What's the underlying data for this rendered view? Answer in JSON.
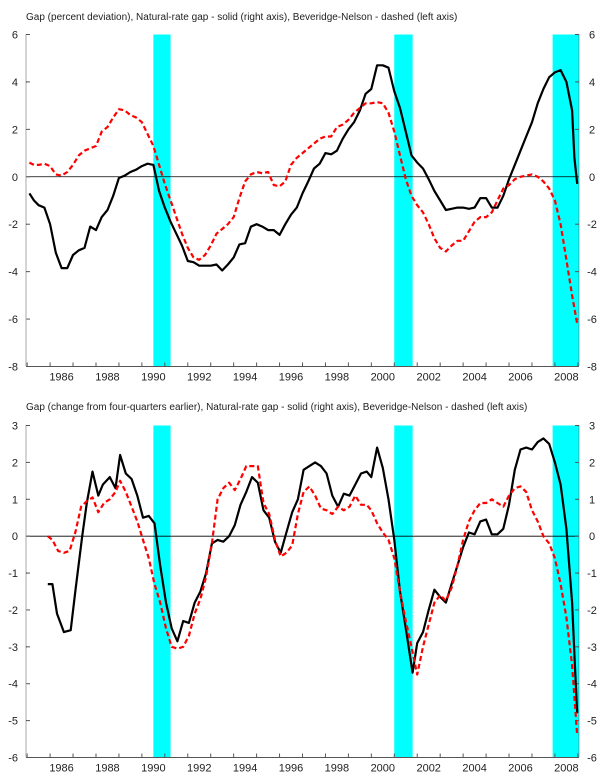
{
  "chart_data": [
    {
      "type": "line",
      "title": "Gap (percent deviation), Natural-rate gap - solid (right axis),  Beveridge-Nelson - dashed (left axis)",
      "xlim": [
        1984.95,
        2009.05
      ],
      "ylim": [
        -8,
        6
      ],
      "y_ticks": [
        6,
        4,
        2,
        0,
        -2,
        -4,
        -6,
        -8
      ],
      "x_tick_labels": [
        "1986",
        "1988",
        "1990",
        "1992",
        "1994",
        "1996",
        "1998",
        "2000",
        "2002",
        "2004",
        "2006",
        "2008"
      ],
      "recessions": [
        [
          1990.5,
          1991.25
        ],
        [
          2001.0,
          2001.8
        ],
        [
          2007.9,
          2009.05
        ]
      ],
      "colors": {
        "solid": "#000000",
        "dashed": "#ff0000",
        "recession": "#00ffff"
      },
      "series": [
        {
          "name": "Natural-rate gap",
          "style": "solid",
          "axis": "right",
          "x": [
            1985.1,
            1985.3,
            1985.5,
            1985.75,
            1986.0,
            1986.25,
            1986.5,
            1986.75,
            1987.0,
            1987.25,
            1987.5,
            1987.75,
            1988.0,
            1988.25,
            1988.5,
            1988.75,
            1989.0,
            1989.25,
            1989.5,
            1989.75,
            1990.0,
            1990.25,
            1990.5,
            1990.75,
            1991.0,
            1991.25,
            1991.5,
            1991.75,
            1992.0,
            1992.25,
            1992.5,
            1992.75,
            1993.0,
            1993.25,
            1993.5,
            1993.75,
            1994.0,
            1994.25,
            1994.5,
            1994.75,
            1995.0,
            1995.25,
            1995.5,
            1995.75,
            1996.0,
            1996.25,
            1996.5,
            1996.75,
            1997.0,
            1997.25,
            1997.5,
            1997.75,
            1998.0,
            1998.25,
            1998.5,
            1998.75,
            1999.0,
            1999.25,
            1999.5,
            1999.75,
            2000.0,
            2000.25,
            2000.5,
            2000.75,
            2001.0,
            2001.25,
            2001.5,
            2001.75,
            2002.0,
            2002.25,
            2002.5,
            2002.75,
            2003.0,
            2003.25,
            2003.5,
            2003.75,
            2004.0,
            2004.25,
            2004.5,
            2004.75,
            2005.0,
            2005.25,
            2005.5,
            2005.75,
            2006.0,
            2006.25,
            2006.5,
            2006.75,
            2007.0,
            2007.25,
            2007.5,
            2007.75,
            2008.0,
            2008.25,
            2008.5,
            2008.75,
            2008.85,
            2008.97
          ],
          "values": [
            -0.7,
            -1.0,
            -1.2,
            -1.3,
            -2.0,
            -3.2,
            -3.85,
            -3.85,
            -3.3,
            -3.1,
            -3.0,
            -2.1,
            -2.25,
            -1.7,
            -1.4,
            -0.8,
            -0.05,
            0.05,
            0.2,
            0.3,
            0.45,
            0.55,
            0.5,
            -0.6,
            -1.3,
            -1.9,
            -2.4,
            -2.9,
            -3.55,
            -3.6,
            -3.75,
            -3.75,
            -3.75,
            -3.7,
            -3.95,
            -3.7,
            -3.4,
            -2.85,
            -2.8,
            -2.1,
            -2.0,
            -2.1,
            -2.25,
            -2.25,
            -2.45,
            -2.0,
            -1.6,
            -1.3,
            -0.7,
            -0.2,
            0.35,
            0.55,
            1.0,
            0.95,
            1.1,
            1.6,
            2.0,
            2.3,
            2.8,
            3.5,
            3.7,
            4.7,
            4.7,
            4.6,
            3.6,
            2.9,
            1.9,
            0.9,
            0.6,
            0.35,
            -0.1,
            -0.6,
            -1.0,
            -1.4,
            -1.35,
            -1.3,
            -1.3,
            -1.35,
            -1.3,
            -0.9,
            -0.9,
            -1.3,
            -1.3,
            -0.8,
            -0.1,
            0.5,
            1.1,
            1.7,
            2.3,
            3.1,
            3.7,
            4.2,
            4.4,
            4.5,
            4.0,
            2.8,
            0.8,
            -0.3
          ]
        },
        {
          "name": "Beveridge-Nelson",
          "style": "dashed",
          "axis": "left",
          "x": [
            1985.1,
            1985.3,
            1985.5,
            1985.75,
            1986.0,
            1986.25,
            1986.5,
            1986.75,
            1987.0,
            1987.25,
            1987.5,
            1987.75,
            1988.0,
            1988.25,
            1988.5,
            1988.75,
            1989.0,
            1989.25,
            1989.5,
            1989.75,
            1990.0,
            1990.25,
            1990.5,
            1990.75,
            1991.0,
            1991.25,
            1991.5,
            1991.75,
            1992.0,
            1992.25,
            1992.5,
            1992.75,
            1993.0,
            1993.25,
            1993.5,
            1993.75,
            1994.0,
            1994.25,
            1994.5,
            1994.75,
            1995.0,
            1995.25,
            1995.5,
            1995.75,
            1996.0,
            1996.25,
            1996.5,
            1996.75,
            1997.0,
            1997.25,
            1997.5,
            1997.75,
            1998.0,
            1998.25,
            1998.5,
            1998.75,
            1999.0,
            1999.25,
            1999.5,
            1999.75,
            2000.0,
            2000.25,
            2000.5,
            2000.75,
            2001.0,
            2001.25,
            2001.5,
            2001.75,
            2002.0,
            2002.25,
            2002.5,
            2002.75,
            2003.0,
            2003.25,
            2003.5,
            2003.75,
            2004.0,
            2004.25,
            2004.5,
            2004.75,
            2005.0,
            2005.25,
            2005.5,
            2005.75,
            2006.0,
            2006.25,
            2006.5,
            2006.75,
            2007.0,
            2007.25,
            2007.5,
            2007.75,
            2008.0,
            2008.25,
            2008.5,
            2008.75,
            2008.97
          ],
          "values": [
            0.6,
            0.5,
            0.5,
            0.55,
            0.45,
            0.1,
            0.05,
            0.2,
            0.5,
            0.9,
            1.1,
            1.2,
            1.3,
            1.9,
            2.1,
            2.5,
            2.85,
            2.8,
            2.6,
            2.5,
            2.3,
            1.8,
            1.3,
            0.5,
            -0.3,
            -1.0,
            -1.7,
            -2.4,
            -3.0,
            -3.4,
            -3.5,
            -3.3,
            -2.9,
            -2.4,
            -2.2,
            -2.0,
            -1.7,
            -0.9,
            -0.2,
            0.1,
            0.2,
            0.15,
            0.2,
            -0.35,
            -0.4,
            -0.2,
            0.5,
            0.8,
            1.0,
            1.2,
            1.4,
            1.6,
            1.7,
            1.7,
            2.1,
            2.2,
            2.4,
            2.7,
            2.9,
            3.1,
            3.1,
            3.15,
            3.1,
            2.7,
            1.9,
            0.9,
            -0.1,
            -0.8,
            -1.2,
            -1.5,
            -2.0,
            -2.6,
            -3.0,
            -3.15,
            -2.9,
            -2.7,
            -2.7,
            -2.3,
            -1.9,
            -1.7,
            -1.7,
            -1.5,
            -1.0,
            -0.5,
            -0.35,
            -0.1,
            0.0,
            0.05,
            0.1,
            0.0,
            -0.2,
            -0.5,
            -1.0,
            -2.0,
            -3.5,
            -5.0,
            -6.2
          ]
        }
      ]
    },
    {
      "type": "line",
      "title": "Gap (change from four-quarters earlier), Natural-rate gap - solid (right axis),  Beveridge-Nelson - dashed (left axis)",
      "xlim": [
        1984.95,
        2009.05
      ],
      "ylim": [
        -6,
        3
      ],
      "y_ticks": [
        3,
        2,
        1,
        0,
        -1,
        -2,
        -3,
        -4,
        -5,
        -6
      ],
      "x_tick_labels": [
        "1986",
        "1988",
        "1990",
        "1992",
        "1994",
        "1996",
        "1998",
        "2000",
        "2002",
        "2004",
        "2006",
        "2008"
      ],
      "recessions": [
        [
          1990.5,
          1991.25
        ],
        [
          2001.0,
          2001.8
        ],
        [
          2007.9,
          2009.05
        ]
      ],
      "colors": {
        "solid": "#000000",
        "dashed": "#ff0000",
        "recession": "#00ffff"
      },
      "series": [
        {
          "name": "Natural-rate gap",
          "style": "solid",
          "axis": "right",
          "x": [
            1985.9,
            1986.1,
            1986.3,
            1986.6,
            1986.9,
            1987.1,
            1987.4,
            1987.6,
            1987.85,
            1988.1,
            1988.3,
            1988.6,
            1988.85,
            1989.05,
            1989.3,
            1989.55,
            1989.8,
            1990.05,
            1990.3,
            1990.55,
            1990.8,
            1991.05,
            1991.3,
            1991.55,
            1991.8,
            1992.05,
            1992.3,
            1992.55,
            1992.8,
            1993.05,
            1993.3,
            1993.55,
            1993.8,
            1994.05,
            1994.3,
            1994.55,
            1994.8,
            1995.05,
            1995.3,
            1995.55,
            1995.8,
            1996.05,
            1996.3,
            1996.55,
            1996.8,
            1997.05,
            1997.3,
            1997.55,
            1997.8,
            1998.05,
            1998.3,
            1998.55,
            1998.8,
            1999.05,
            1999.3,
            1999.55,
            1999.8,
            2000.0,
            2000.25,
            2000.5,
            2000.75,
            2001.0,
            2001.25,
            2001.5,
            2001.8,
            2002.0,
            2002.25,
            2002.5,
            2002.75,
            2003.0,
            2003.25,
            2003.5,
            2003.75,
            2004.0,
            2004.25,
            2004.5,
            2004.75,
            2005.0,
            2005.25,
            2005.5,
            2005.75,
            2006.0,
            2006.25,
            2006.5,
            2006.75,
            2007.0,
            2007.25,
            2007.5,
            2007.75,
            2008.0,
            2008.25,
            2008.5,
            2008.75,
            2008.87,
            2008.97
          ],
          "values": [
            -1.3,
            -1.3,
            -2.1,
            -2.6,
            -2.55,
            -1.5,
            0.0,
            0.9,
            1.75,
            1.1,
            1.4,
            1.6,
            1.3,
            2.2,
            1.7,
            1.55,
            1.1,
            0.5,
            0.55,
            0.35,
            -0.8,
            -1.8,
            -2.5,
            -2.85,
            -2.3,
            -2.35,
            -1.8,
            -1.5,
            -1.0,
            -0.2,
            -0.1,
            -0.15,
            0.0,
            0.3,
            0.85,
            1.2,
            1.6,
            1.45,
            0.7,
            0.5,
            -0.15,
            -0.45,
            0.1,
            0.65,
            1.0,
            1.8,
            1.9,
            2.0,
            1.9,
            1.7,
            1.1,
            0.8,
            1.15,
            1.1,
            1.4,
            1.7,
            1.75,
            1.6,
            2.4,
            1.85,
            1.0,
            -0.1,
            -1.5,
            -2.5,
            -3.7,
            -2.9,
            -2.6,
            -2.0,
            -1.45,
            -1.65,
            -1.8,
            -1.3,
            -0.8,
            -0.3,
            0.1,
            0.05,
            0.4,
            0.45,
            0.05,
            0.05,
            0.2,
            0.85,
            1.8,
            2.35,
            2.4,
            2.35,
            2.55,
            2.65,
            2.5,
            2.0,
            1.4,
            0.2,
            -1.8,
            -3.5,
            -4.8
          ]
        },
        {
          "name": "Beveridge-Nelson",
          "style": "dashed",
          "axis": "left",
          "x": [
            1985.9,
            1986.1,
            1986.35,
            1986.6,
            1986.85,
            1987.1,
            1987.35,
            1987.6,
            1987.85,
            1988.1,
            1988.35,
            1988.6,
            1988.85,
            1989.05,
            1989.3,
            1989.55,
            1989.8,
            1990.05,
            1990.3,
            1990.55,
            1990.8,
            1991.05,
            1991.3,
            1991.55,
            1991.8,
            1992.05,
            1992.3,
            1992.55,
            1992.8,
            1993.05,
            1993.3,
            1993.55,
            1993.8,
            1994.05,
            1994.3,
            1994.55,
            1994.8,
            1995.05,
            1995.3,
            1995.55,
            1995.8,
            1996.05,
            1996.3,
            1996.55,
            1996.8,
            1997.05,
            1997.3,
            1997.55,
            1997.8,
            1998.05,
            1998.3,
            1998.55,
            1998.8,
            1999.05,
            1999.3,
            1999.55,
            1999.8,
            2000.0,
            2000.25,
            2000.5,
            2000.75,
            2001.0,
            2001.25,
            2001.5,
            2001.75,
            2002.0,
            2002.25,
            2002.5,
            2002.75,
            2003.0,
            2003.25,
            2003.5,
            2003.75,
            2004.0,
            2004.25,
            2004.5,
            2004.75,
            2005.0,
            2005.25,
            2005.5,
            2005.75,
            2006.0,
            2006.25,
            2006.5,
            2006.75,
            2007.0,
            2007.25,
            2007.5,
            2007.75,
            2008.0,
            2008.25,
            2008.5,
            2008.75,
            2008.97
          ],
          "values": [
            0.0,
            -0.1,
            -0.4,
            -0.45,
            -0.4,
            0.1,
            0.8,
            0.95,
            1.05,
            0.65,
            0.9,
            1.0,
            1.2,
            1.5,
            1.2,
            0.8,
            0.4,
            -0.1,
            -0.6,
            -1.3,
            -1.8,
            -2.5,
            -3.0,
            -3.05,
            -3.0,
            -2.7,
            -2.1,
            -1.7,
            -1.1,
            -0.2,
            1.0,
            1.3,
            1.45,
            1.25,
            1.55,
            1.9,
            1.9,
            1.9,
            0.9,
            0.6,
            -0.1,
            -0.55,
            -0.45,
            -0.25,
            0.6,
            1.2,
            1.35,
            1.1,
            0.75,
            0.7,
            0.6,
            0.8,
            0.7,
            0.8,
            1.1,
            0.85,
            0.85,
            0.7,
            0.35,
            0.1,
            -0.1,
            -0.6,
            -1.5,
            -2.3,
            -3.0,
            -3.75,
            -3.0,
            -2.4,
            -1.8,
            -1.6,
            -1.75,
            -1.4,
            -0.8,
            -0.1,
            0.4,
            0.7,
            0.9,
            0.9,
            1.0,
            0.9,
            0.8,
            1.1,
            1.3,
            1.35,
            1.2,
            0.7,
            0.4,
            0.0,
            -0.2,
            -0.6,
            -1.3,
            -2.2,
            -3.5,
            -5.4
          ]
        }
      ]
    }
  ]
}
